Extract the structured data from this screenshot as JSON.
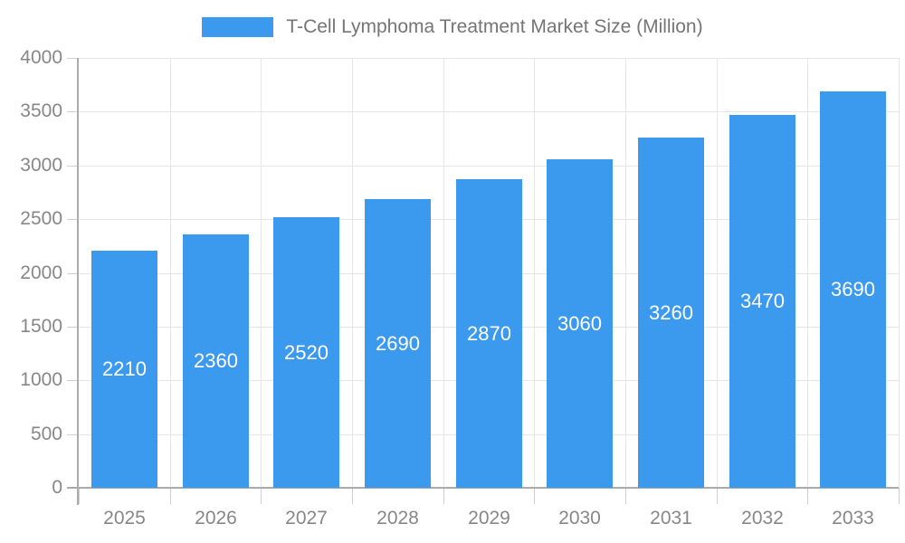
{
  "legend": {
    "label": "T-Cell Lymphoma Treatment Market Size (Million)"
  },
  "chart_data": {
    "type": "bar",
    "title": "T-Cell Lymphoma Treatment Market Size (Million)",
    "categories": [
      "2025",
      "2026",
      "2027",
      "2028",
      "2029",
      "2030",
      "2031",
      "2032",
      "2033"
    ],
    "values": [
      2210,
      2360,
      2520,
      2690,
      2870,
      3060,
      3260,
      3470,
      3690
    ],
    "value_labels_position": "inside-center",
    "xlabel": "",
    "ylabel": "",
    "ylim": [
      0,
      4000
    ],
    "ytick_step": 500,
    "yticks": [
      0,
      500,
      1000,
      1500,
      2000,
      2500,
      3000,
      3500,
      4000
    ],
    "grid": true,
    "legend_position": "top",
    "colors": {
      "bar": "#3B99EE",
      "bar_label": "#ffffff",
      "grid_line": "#e6e6e6",
      "axis_line": "#ababab",
      "tick_mark": "#cfcfcf",
      "tick_label": "#878787",
      "legend_text": "#757575",
      "background": "#ffffff"
    }
  }
}
